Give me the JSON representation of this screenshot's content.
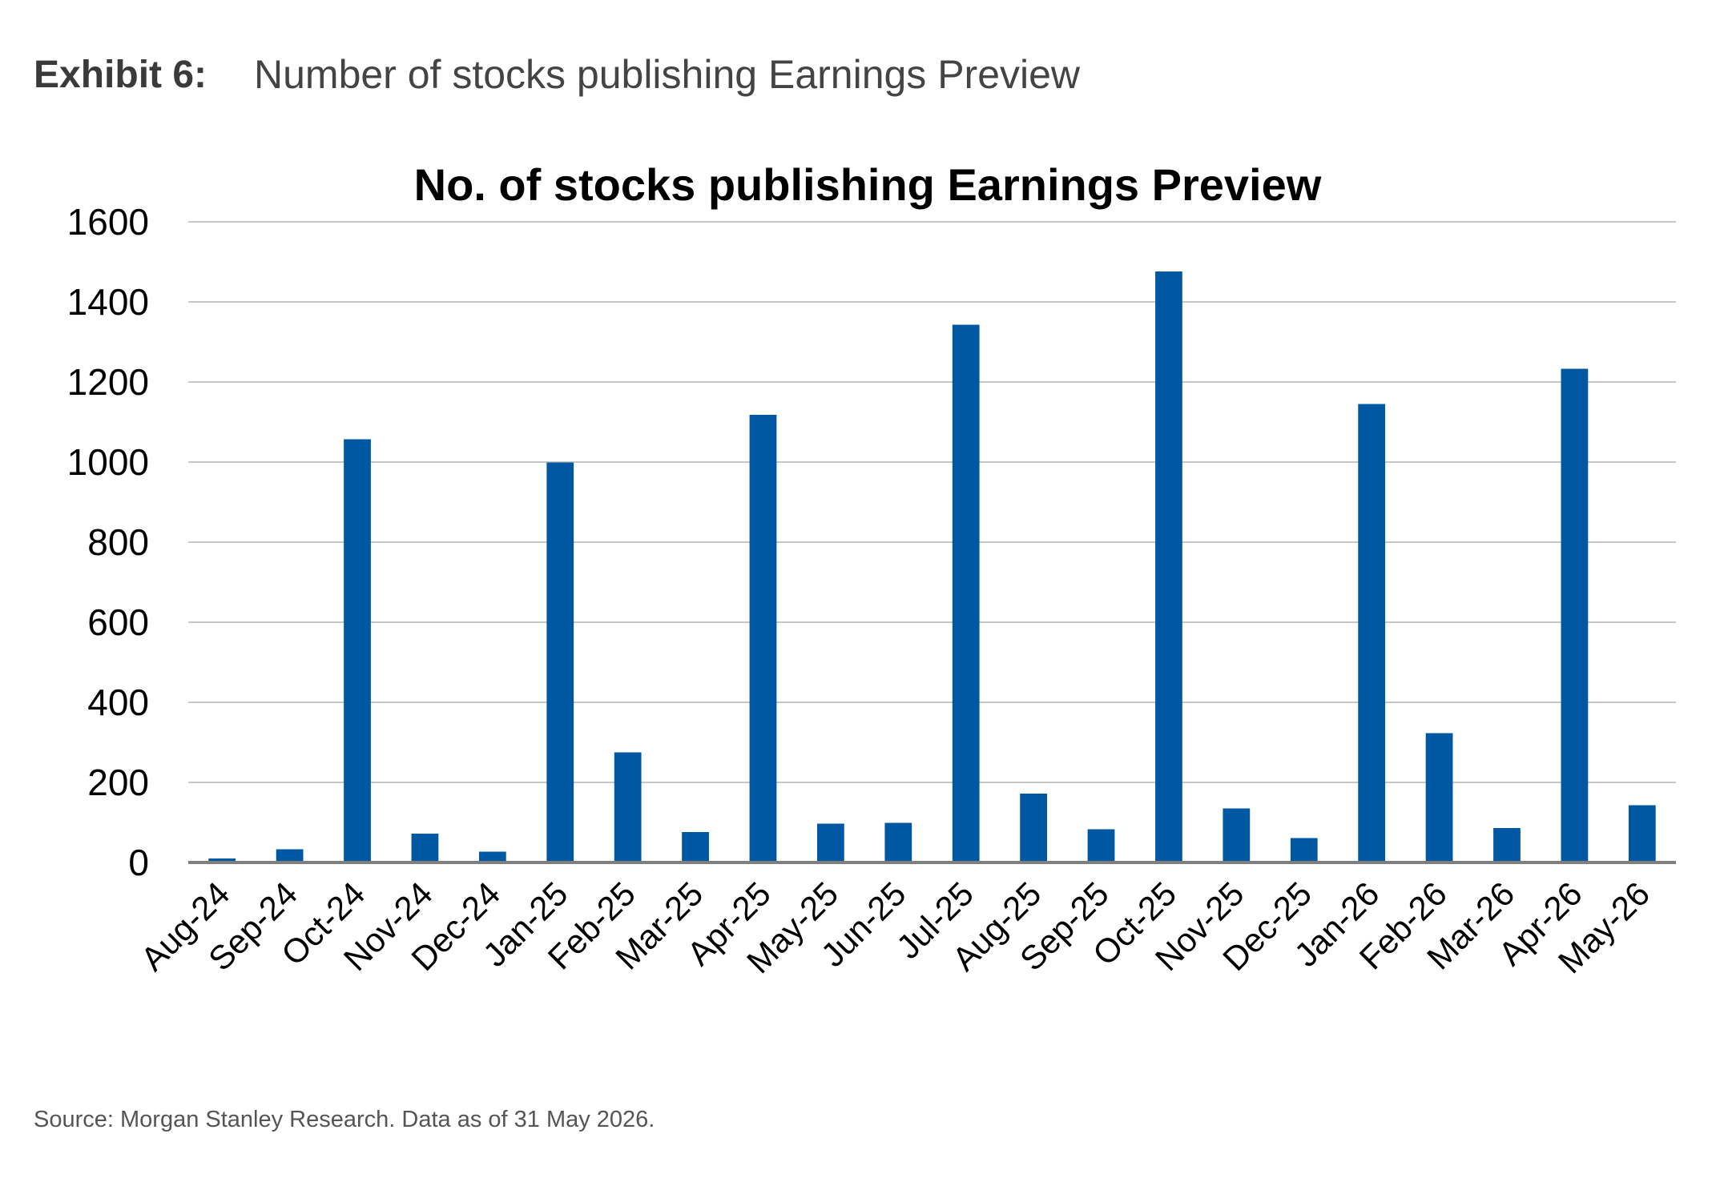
{
  "header": {
    "exhibit_label": "Exhibit 6:",
    "exhibit_title": "Number of stocks publishing Earnings Preview"
  },
  "footer": {
    "source": "Source: Morgan Stanley Research. Data as of 31 May 2026."
  },
  "chart_data": {
    "type": "bar",
    "title": "No. of stocks publishing Earnings Preview",
    "xlabel": "",
    "ylabel": "",
    "ylim": [
      0,
      1600
    ],
    "yticks": [
      0,
      200,
      400,
      600,
      800,
      1000,
      1200,
      1400,
      1600
    ],
    "grid": true,
    "legend": "none",
    "bar_color": "#0058A3",
    "categories": [
      "Aug-24",
      "Sep-24",
      "Oct-24",
      "Nov-24",
      "Dec-24",
      "Jan-25",
      "Feb-25",
      "Mar-25",
      "Apr-25",
      "May-25",
      "Jun-25",
      "Jul-25",
      "Aug-25",
      "Sep-25",
      "Oct-25",
      "Nov-25",
      "Dec-25",
      "Jan-26",
      "Feb-26",
      "Mar-26",
      "Apr-26",
      "May-26"
    ],
    "values": [
      10,
      33,
      1057,
      72,
      27,
      999,
      275,
      76,
      1118,
      97,
      99,
      1343,
      172,
      83,
      1476,
      135,
      61,
      1145,
      323,
      86,
      1233,
      143
    ]
  }
}
